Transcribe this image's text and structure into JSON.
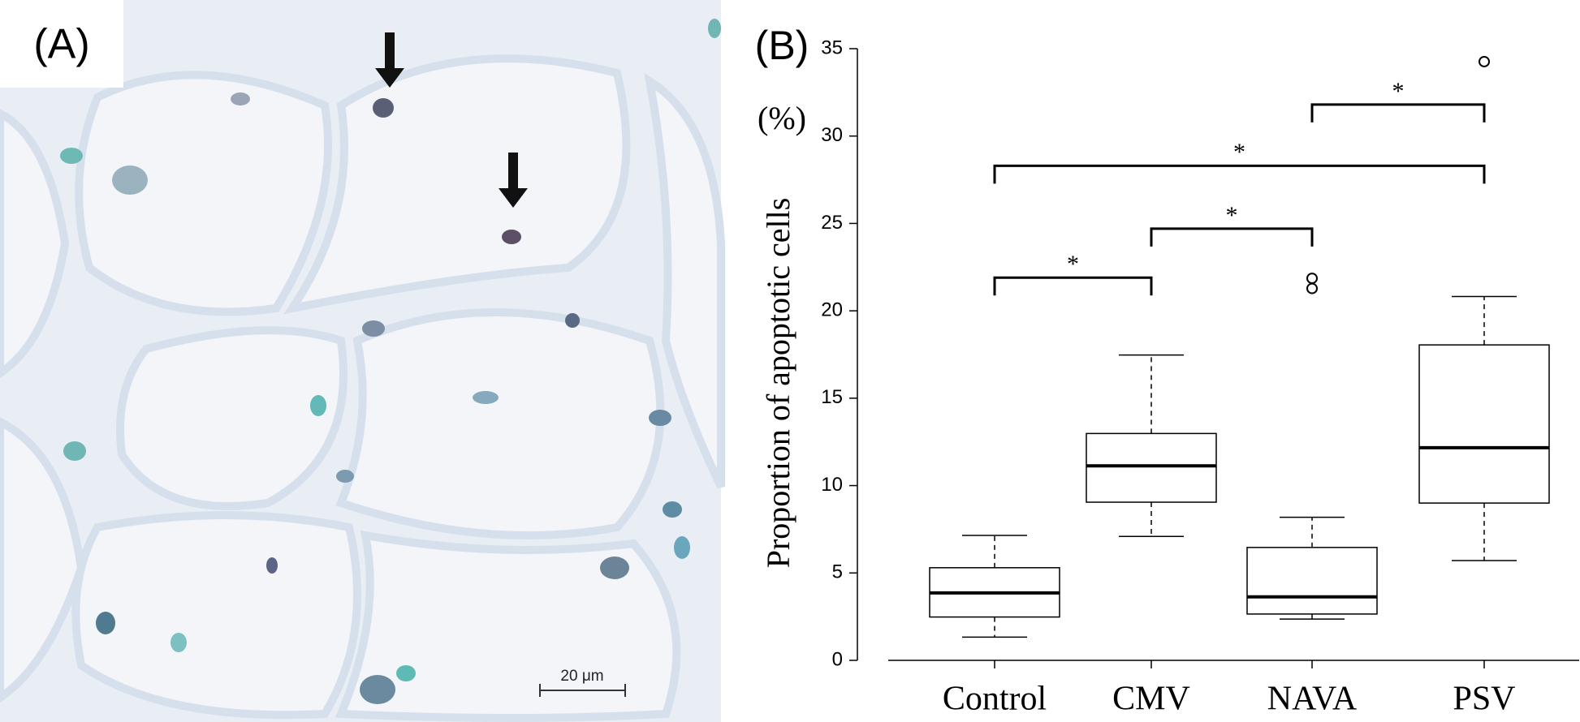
{
  "panel_a": {
    "label": "(A)",
    "scale_bar": "20 μm"
  },
  "chart_data": {
    "type": "box",
    "label": "(B)",
    "y_label": "Proportion of apoptotic cells",
    "y_unit": "(%)",
    "categories": [
      "Control",
      "CMV",
      "NAVA",
      "PSV"
    ],
    "boxes": [
      {
        "whisker_low": 1.33,
        "q1": 2.48,
        "median": 3.86,
        "q3": 5.3,
        "whisker_high": 7.15,
        "outliers": []
      },
      {
        "whisker_low": 7.09,
        "q1": 9.05,
        "median": 11.13,
        "q3": 12.98,
        "whisker_high": 17.47,
        "outliers": []
      },
      {
        "whisker_low": 2.36,
        "q1": 2.65,
        "median": 3.63,
        "q3": 6.46,
        "whisker_high": 8.19,
        "outliers": [
          21.86,
          21.28
        ]
      },
      {
        "whisker_low": 5.71,
        "q1": 9.0,
        "median": 12.17,
        "q3": 18.05,
        "whisker_high": 20.82,
        "outliers": [
          34.26
        ]
      }
    ],
    "significance": [
      {
        "from": 0,
        "to": 1,
        "y": 21.9,
        "label": "*"
      },
      {
        "from": 1,
        "to": 2,
        "y": 24.7,
        "label": "*"
      },
      {
        "from": 0,
        "to": 3,
        "y": 28.3,
        "label": "*"
      },
      {
        "from": 2,
        "to": 3,
        "y": 31.8,
        "label": "*"
      }
    ],
    "ylim": [
      0,
      35
    ],
    "yticks": [
      0,
      5,
      10,
      15,
      20,
      25,
      30,
      35
    ],
    "color": "#000000"
  }
}
